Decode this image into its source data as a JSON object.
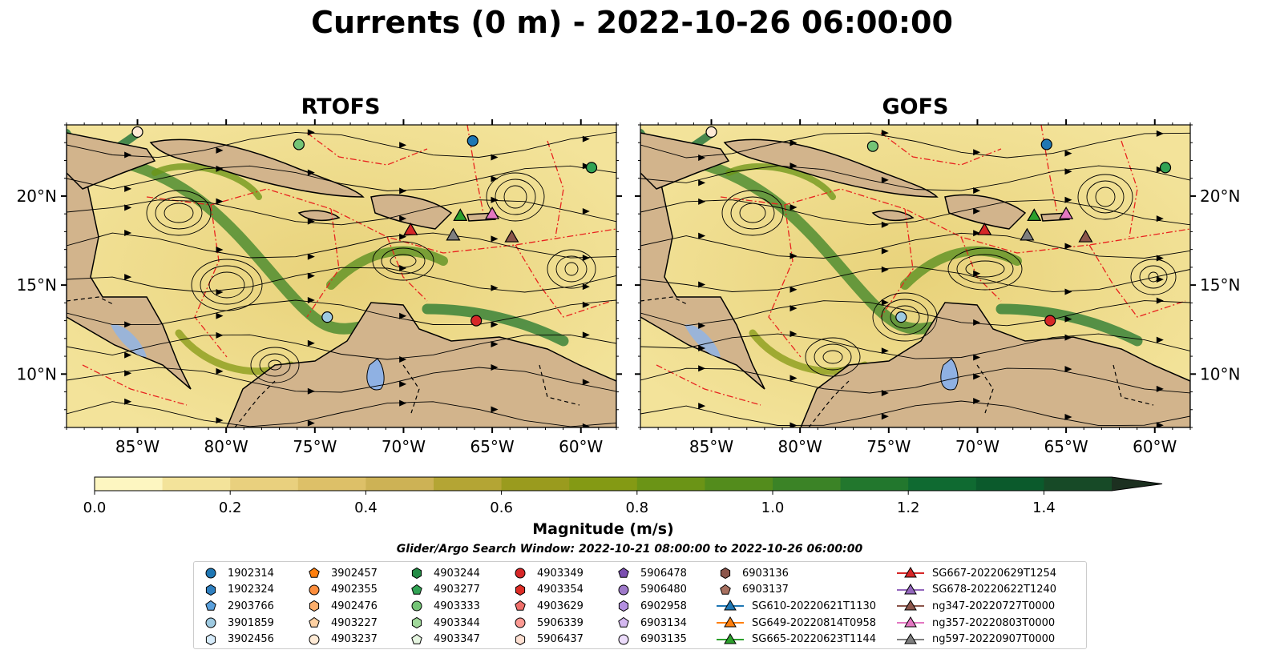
{
  "title": "Currents (0 m) - 2022-10-26 06:00:00",
  "panels": [
    {
      "title": "RTOFS"
    },
    {
      "title": "GOFS"
    }
  ],
  "axes": {
    "x_ticks": [
      "85°W",
      "80°W",
      "75°W",
      "70°W",
      "65°W",
      "60°W"
    ],
    "y_ticks": [
      "20°N",
      "15°N",
      "10°N"
    ]
  },
  "colorbar": {
    "label": "Magnitude (m/s)",
    "ticks": [
      "0.0",
      "0.2",
      "0.4",
      "0.6",
      "0.8",
      "1.0",
      "1.2",
      "1.4"
    ],
    "range": [
      0,
      1.5
    ],
    "extend": "max",
    "colors": [
      "#fdf6c1",
      "#f3e39a",
      "#e9d07e",
      "#ddc068",
      "#cdb255",
      "#b4a534",
      "#9a9b1e",
      "#849a14",
      "#6b9416",
      "#538c1c",
      "#3b8326",
      "#22772d",
      "#0f6a31",
      "#0b5a2c",
      "#174a27",
      "#1e3d22",
      "#1c3020"
    ]
  },
  "search_window": "Glider/Argo Search Window: 2022-10-21 08:00:00 to 2022-10-26 06:00:00",
  "chart_data": [
    {
      "type": "heatmap",
      "title": "RTOFS",
      "variable": "Current magnitude at 0 m (m/s) with streamlines",
      "xlim": [
        -89,
        -58
      ],
      "ylim": [
        7,
        24
      ],
      "x_ticks": [
        -85,
        -80,
        -75,
        -70,
        -65,
        -60
      ],
      "y_ticks": [
        20,
        15,
        10
      ],
      "clim": [
        0,
        1.5
      ],
      "markers": [
        {
          "id": "1902314",
          "lon": -66.1,
          "lat": 23.1
        },
        {
          "id": "4903333",
          "lon": -75.9,
          "lat": 22.9
        },
        {
          "id": "4903237",
          "lon": -85.0,
          "lat": 23.6
        },
        {
          "id": "4903349",
          "lon": -65.9,
          "lat": 13.0
        },
        {
          "id": "4903277",
          "lon": -59.4,
          "lat": 21.6
        },
        {
          "id": "3901859",
          "lon": -74.3,
          "lat": 13.2
        },
        {
          "id": "SG667-20220629T1254",
          "lon": -69.6,
          "lat": 18.1
        },
        {
          "id": "SG665-20220623T1144",
          "lon": -66.8,
          "lat": 18.9
        },
        {
          "id": "ng357-20220803T0000",
          "lon": -65.0,
          "lat": 19.0
        },
        {
          "id": "ng347-20220727T0000",
          "lon": -63.9,
          "lat": 17.7
        },
        {
          "id": "ng597-20220907T0000",
          "lon": -67.2,
          "lat": 17.8
        }
      ]
    },
    {
      "type": "heatmap",
      "title": "GOFS",
      "variable": "Current magnitude at 0 m (m/s) with streamlines",
      "xlim": [
        -89,
        -58
      ],
      "ylim": [
        7,
        24
      ],
      "x_ticks": [
        -85,
        -80,
        -75,
        -70,
        -65,
        -60
      ],
      "y_ticks": [
        20,
        15,
        10
      ],
      "clim": [
        0,
        1.5
      ],
      "markers": [
        {
          "id": "1902314",
          "lon": -66.1,
          "lat": 22.9
        },
        {
          "id": "4903333",
          "lon": -75.9,
          "lat": 22.8
        },
        {
          "id": "4903237",
          "lon": -85.0,
          "lat": 23.6
        },
        {
          "id": "4903349",
          "lon": -65.9,
          "lat": 13.0
        },
        {
          "id": "4903277",
          "lon": -59.4,
          "lat": 21.6
        },
        {
          "id": "3901859",
          "lon": -74.3,
          "lat": 13.2
        },
        {
          "id": "SG667-20220629T1254",
          "lon": -69.6,
          "lat": 18.1
        },
        {
          "id": "SG665-20220623T1144",
          "lon": -66.8,
          "lat": 18.9
        },
        {
          "id": "ng357-20220803T0000",
          "lon": -65.0,
          "lat": 19.0
        },
        {
          "id": "ng347-20220727T0000",
          "lon": -63.9,
          "lat": 17.7
        },
        {
          "id": "ng597-20220907T0000",
          "lon": -67.2,
          "lat": 17.8
        }
      ]
    }
  ],
  "legend": {
    "columns": [
      [
        {
          "label": "1902314",
          "marker": "circle",
          "color": "#1f77b4"
        },
        {
          "label": "1902324",
          "marker": "hexagon",
          "color": "#2f80c0"
        },
        {
          "label": "2903766",
          "marker": "pentagon",
          "color": "#5aa0dc"
        },
        {
          "label": "3901859",
          "marker": "circle",
          "color": "#9ecae1"
        },
        {
          "label": "3902456",
          "marker": "hexagon",
          "color": "#d6ebfa"
        }
      ],
      [
        {
          "label": "3902457",
          "marker": "pentagon",
          "color": "#ff7f0e"
        },
        {
          "label": "4902355",
          "marker": "circle",
          "color": "#fd8d3c"
        },
        {
          "label": "4902476",
          "marker": "hexagon",
          "color": "#fdae6b"
        },
        {
          "label": "4903227",
          "marker": "pentagon",
          "color": "#fdd0a2"
        },
        {
          "label": "4903237",
          "marker": "circle",
          "color": "#feead5"
        }
      ],
      [
        {
          "label": "4903244",
          "marker": "hexagon",
          "color": "#238b45"
        },
        {
          "label": "4903277",
          "marker": "pentagon",
          "color": "#31a354"
        },
        {
          "label": "4903333",
          "marker": "circle",
          "color": "#74c476"
        },
        {
          "label": "4903344",
          "marker": "hexagon",
          "color": "#a1d99b"
        },
        {
          "label": "4903347",
          "marker": "pentagon",
          "color": "#e5f5e0"
        }
      ],
      [
        {
          "label": "4903349",
          "marker": "circle",
          "color": "#d62728"
        },
        {
          "label": "4903354",
          "marker": "hexagon",
          "color": "#de2d26"
        },
        {
          "label": "4903629",
          "marker": "pentagon",
          "color": "#ef6f6a"
        },
        {
          "label": "5906339",
          "marker": "circle",
          "color": "#fc9a93"
        },
        {
          "label": "5906437",
          "marker": "hexagon",
          "color": "#fee0d2"
        }
      ],
      [
        {
          "label": "5906478",
          "marker": "pentagon",
          "color": "#7b4fb0"
        },
        {
          "label": "5906480",
          "marker": "circle",
          "color": "#9e79c9"
        },
        {
          "label": "6902958",
          "marker": "hexagon",
          "color": "#b38fe0"
        },
        {
          "label": "6903134",
          "marker": "pentagon",
          "color": "#d4b8f0"
        },
        {
          "label": "6903135",
          "marker": "circle",
          "color": "#ecdcfb"
        }
      ],
      [
        {
          "label": "6903136",
          "marker": "hexagon",
          "color": "#8c564b"
        },
        {
          "label": "6903137",
          "marker": "pentagon",
          "color": "#a87060"
        },
        {
          "label": "SG610-20220621T1130",
          "marker": "triangle-line",
          "color": "#1f77b4"
        },
        {
          "label": "SG649-20220814T0958",
          "marker": "triangle-line",
          "color": "#ff7f0e"
        },
        {
          "label": "SG665-20220623T1144",
          "marker": "triangle-line",
          "color": "#2ca02c"
        }
      ],
      [
        {
          "label": "SG667-20220629T1254",
          "marker": "triangle-line",
          "color": "#d62728"
        },
        {
          "label": "SG678-20220622T1240",
          "marker": "triangle-line",
          "color": "#9467bd"
        },
        {
          "label": "ng347-20220727T0000",
          "marker": "triangle-line",
          "color": "#8c564b"
        },
        {
          "label": "ng357-20220803T0000",
          "marker": "triangle-line",
          "color": "#e377c2"
        },
        {
          "label": "ng597-20220907T0000",
          "marker": "triangle-line",
          "color": "#7f7f7f"
        }
      ]
    ]
  }
}
